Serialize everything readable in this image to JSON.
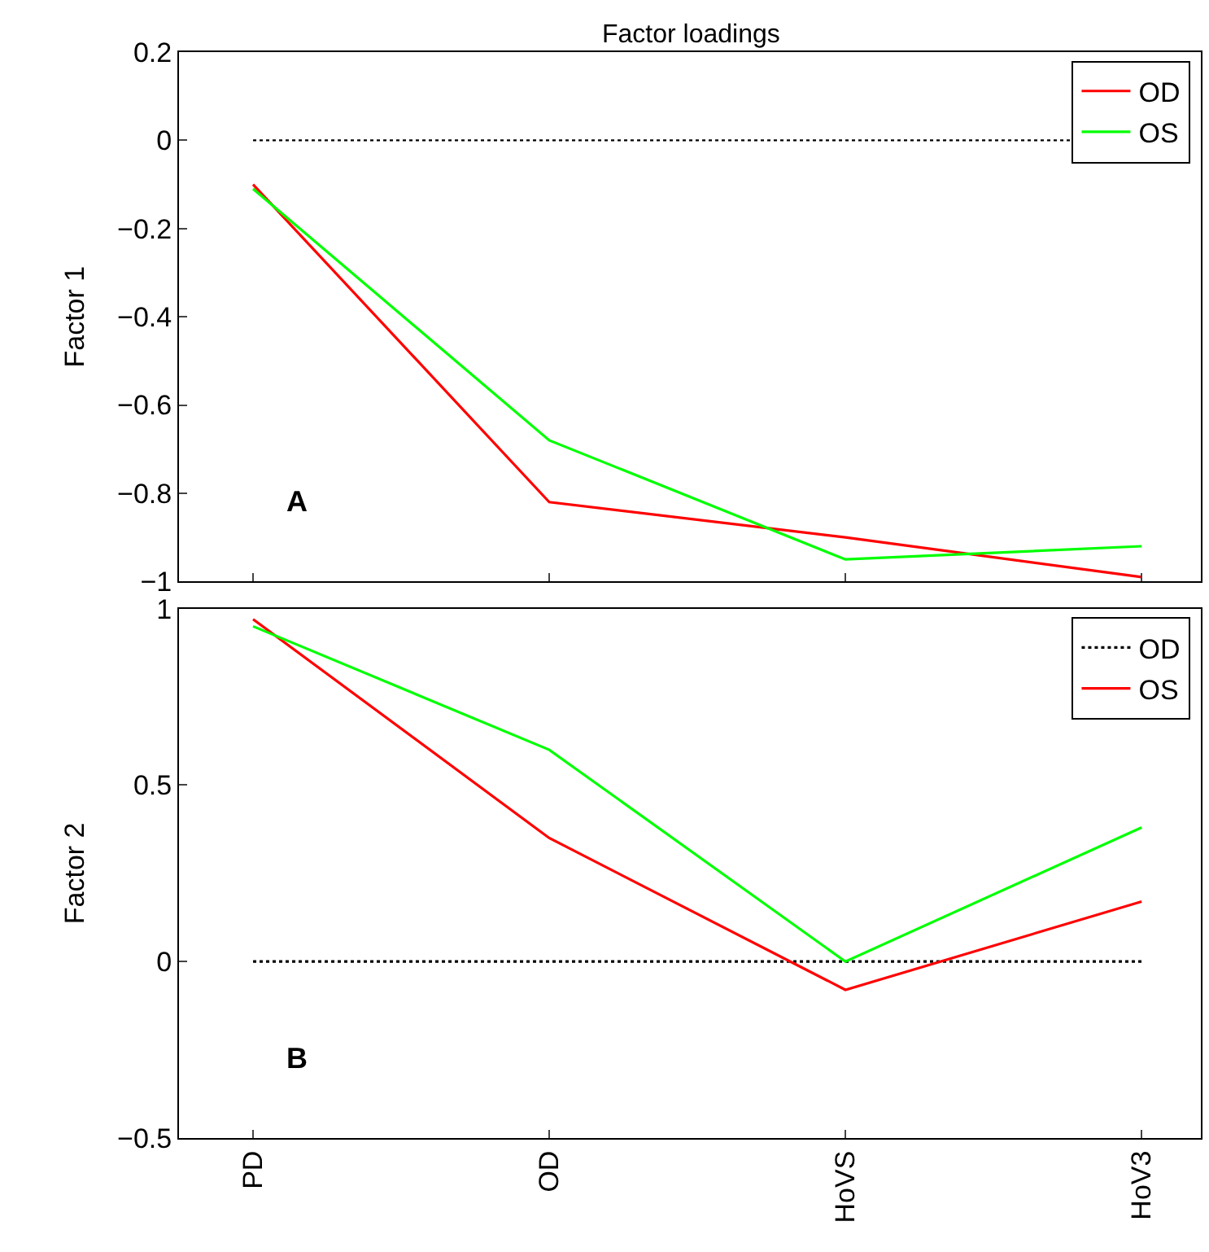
{
  "chart_data": [
    {
      "type": "line",
      "title": "Factor loadings",
      "ylabel": "Factor 1",
      "categories": [
        "PD",
        "OD",
        "HoVS",
        "HoV3"
      ],
      "series": [
        {
          "name": "OD",
          "color": "#ff0000",
          "values": [
            -0.1,
            -0.82,
            -0.9,
            -0.99
          ]
        },
        {
          "name": "OS",
          "color": "#00ff00",
          "values": [
            -0.11,
            -0.68,
            -0.95,
            -0.92
          ]
        }
      ],
      "ylim": [
        -1,
        0.2
      ],
      "yticks": [
        -1,
        -0.8,
        -0.6,
        -0.4,
        -0.2,
        0,
        0.2
      ],
      "ref_lines": [
        {
          "axis": "y",
          "value": 0,
          "color": "#000000",
          "line_style": "dotted"
        }
      ],
      "annotations": [
        "A"
      ],
      "legend": "top right",
      "tick_labels": "y",
      "marker": "none",
      "line_style": "solid"
    },
    {
      "type": "line",
      "ylabel": "Factor 2",
      "categories": [
        "PD",
        "OD",
        "HoVS",
        "HoV3"
      ],
      "series": [
        {
          "name": "OD",
          "color": "#000000",
          "values": [
            0,
            0,
            0,
            0
          ],
          "line_style": "dotted"
        },
        {
          "name": "OS",
          "color": "#ff0000",
          "values": [
            0.97,
            0.35,
            -0.08,
            0.17
          ]
        },
        {
          "color": "#00ff00",
          "values": [
            0.95,
            0.6,
            0.0,
            0.38
          ]
        }
      ],
      "ylim": [
        -0.5,
        1
      ],
      "yticks": [
        -0.5,
        0,
        0.5,
        1
      ],
      "annotations": [
        "B"
      ],
      "legend": "top right",
      "marker": "none",
      "line_style": "solid"
    }
  ]
}
